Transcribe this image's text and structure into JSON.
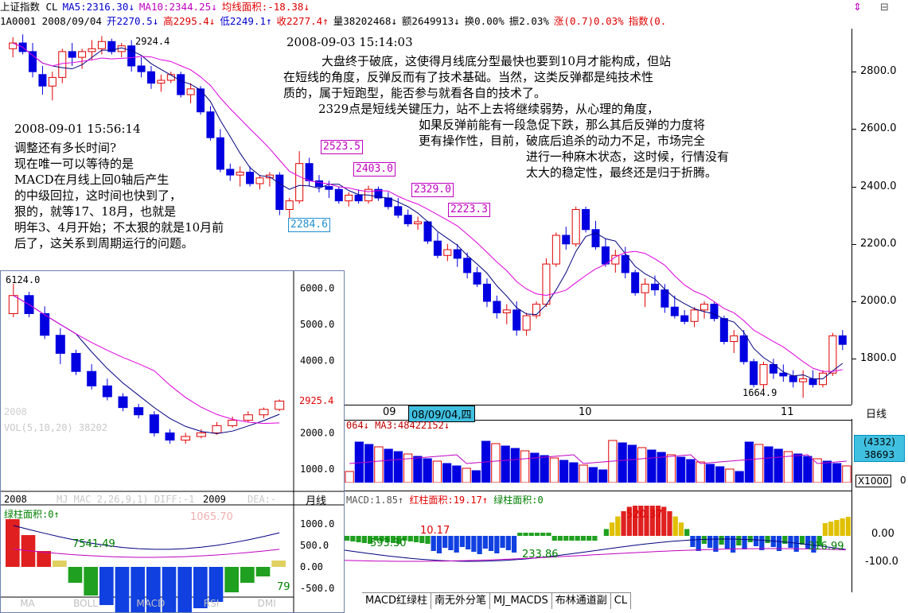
{
  "header": {
    "row1": [
      {
        "t": "上证指数 CL",
        "c": "blk"
      },
      {
        "t": "MA5:2316.30↓",
        "c": "blue"
      },
      {
        "t": "MA10:2344.25↓",
        "c": "mag"
      },
      {
        "t": "均线面积:-18.38↓",
        "c": "red"
      }
    ],
    "row2": [
      {
        "t": "1A0001 2008/09/04",
        "c": "blk"
      },
      {
        "t": "开2270.5↓",
        "c": "blue"
      },
      {
        "t": "高2295.4↓",
        "c": "red"
      },
      {
        "t": "低2249.1↑",
        "c": "blue"
      },
      {
        "t": "收2277.4↑",
        "c": "red"
      },
      {
        "t": "量38202468↓",
        "c": "blk"
      },
      {
        "t": "额2649913↓",
        "c": "blk"
      },
      {
        "t": "换0.00%",
        "c": "blk"
      },
      {
        "t": "振2.03%",
        "c": "blk"
      },
      {
        "t": "涨(0.7)0.03%",
        "c": "red"
      },
      {
        "t": "指数(0.",
        "c": "red"
      }
    ]
  },
  "colors": {
    "up": "#e00000",
    "down": "#0000e0",
    "ma5": "#000080",
    "ma10": "#e000e0",
    "inset_border": "#6b7fae"
  },
  "notes": {
    "n1_date": "2008-09-01 15:56:14",
    "n1_lines": [
      "调整还有多长时间?",
      "现在唯一可以等待的是",
      "MACD在月线上回0轴后产生",
      "的中级回拉，这时间也快到了，",
      "狠的，就等17、18月，也就是",
      "明年3、4月开始；不太狠的就是10月前",
      "后了，这关系到周期运行的问题。"
    ],
    "n2_date": "2008-09-03 15:14:03",
    "n2_lines": [
      "大盘终于破底，这使得月线底分型最快也要到10月才能构成，但站",
      "在短线的角度，反弹反而有了技术基础。当然，这类反弹都是纯技术性",
      "质的，属于短跑型，能否参与就看各自的技术了。",
      "2329点是短线关键压力，站不上去将继续弱势，从心理的角度，",
      "如果反弹前能有一段急促下跌，那么其后反弹的力度将",
      "更有操作性，目前，破底后追杀的动力不足，市场完全",
      "进行一种麻木状态，这时候，行情没有",
      "太大的稳定性，最终还是归于折腾。"
    ]
  },
  "price_labels": {
    "p2924": "2924.4",
    "p2523": "2523.5",
    "p2403": "2403.0",
    "p2329": "2329.0",
    "p2284": "2284.6",
    "p2223": "2223.3",
    "p1664": "1664.9"
  },
  "main_axis": {
    "ticks": [
      "2800.0",
      "2600.0",
      "2400.0",
      "2200.0",
      "2000.0",
      "1800.0"
    ]
  },
  "date_axis": {
    "m09": "09",
    "selected": "08/09/04,四",
    "m10": "10",
    "m11": "11",
    "period": "日线"
  },
  "volume": {
    "title": "064↓ MA3:48422152↓",
    "box1": "(4332)",
    "box2": "38693",
    "ticks_right": "0",
    "unit": "X1000"
  },
  "macd": {
    "title_blk": "MACD:1.85↑",
    "title_red": "红柱面积:19.17↑",
    "title_grn": "绿柱面积:0",
    "v520": "520.37",
    "v593": "593.30",
    "v233": "233.86",
    "v316": "316.99",
    "v10": "10.17",
    "ticks": [
      "0.00",
      "-100.0"
    ]
  },
  "inset": {
    "p6124": "6124.0",
    "p2925": "2925.4",
    "yticks": [
      "6000.0",
      "5000.0",
      "4000.0",
      "3000.0",
      "2000.0",
      "1000.0"
    ],
    "x2008": "2008",
    "x2009": "2009",
    "period": "月线",
    "green_area": "绿柱面积:0↑",
    "v7541": "7541.49",
    "v1065": "1065.70",
    "v79": "79",
    "macd_ticks": [
      "1000.0",
      "500.0",
      "0.00",
      "-500.0"
    ],
    "faded_vol": "VOL(5,10,20) 38202",
    "faded_macd": "MJ MAC 2,26,9,1) DIFF:-1",
    "faded_dea": "DEA:-",
    "faded_y2008": "2008",
    "tabs": [
      "MA",
      "BOLL",
      "MACD",
      "RSI",
      "DMI"
    ]
  },
  "tabs": [
    "MACD红绿柱",
    "南无外分笔",
    "MJ_MACDS",
    "布林通道副",
    "CL"
  ],
  "chart_data": [
    {
      "type": "candlestick",
      "title": "上证指数 日线",
      "note": "daily OHLC, approx. Jul 2008 – Nov 2008",
      "ohlc": [
        [
          2880,
          2920,
          2850,
          2900
        ],
        [
          2900,
          2930,
          2860,
          2870
        ],
        [
          2870,
          2900,
          2780,
          2800
        ],
        [
          2790,
          2820,
          2720,
          2750
        ],
        [
          2750,
          2800,
          2700,
          2780
        ],
        [
          2780,
          2880,
          2760,
          2870
        ],
        [
          2870,
          2900,
          2820,
          2850
        ],
        [
          2850,
          2880,
          2810,
          2870
        ],
        [
          2870,
          2910,
          2840,
          2880
        ],
        [
          2880,
          2924,
          2860,
          2905
        ],
        [
          2905,
          2915,
          2860,
          2870
        ],
        [
          2870,
          2900,
          2850,
          2890
        ],
        [
          2890,
          2910,
          2800,
          2820
        ],
        [
          2820,
          2850,
          2780,
          2800
        ],
        [
          2800,
          2820,
          2740,
          2760
        ],
        [
          2760,
          2790,
          2730,
          2770
        ],
        [
          2770,
          2800,
          2760,
          2790
        ],
        [
          2790,
          2800,
          2710,
          2720
        ],
        [
          2720,
          2760,
          2690,
          2740
        ],
        [
          2740,
          2750,
          2650,
          2660
        ],
        [
          2660,
          2680,
          2560,
          2570
        ],
        [
          2570,
          2600,
          2450,
          2460
        ],
        [
          2460,
          2480,
          2420,
          2440
        ],
        [
          2440,
          2470,
          2400,
          2450
        ],
        [
          2450,
          2470,
          2400,
          2410
        ],
        [
          2410,
          2440,
          2390,
          2430
        ],
        [
          2430,
          2450,
          2400,
          2440
        ],
        [
          2440,
          2450,
          2300,
          2320
        ],
        [
          2320,
          2360,
          2290,
          2350
        ],
        [
          2350,
          2523,
          2340,
          2480
        ],
        [
          2480,
          2500,
          2400,
          2420
        ],
        [
          2420,
          2440,
          2380,
          2400
        ],
        [
          2400,
          2420,
          2360,
          2390
        ],
        [
          2390,
          2400,
          2340,
          2350
        ],
        [
          2350,
          2380,
          2330,
          2370
        ],
        [
          2370,
          2390,
          2340,
          2350
        ],
        [
          2350,
          2403,
          2340,
          2390
        ],
        [
          2390,
          2400,
          2350,
          2360
        ],
        [
          2360,
          2380,
          2320,
          2330
        ],
        [
          2330,
          2360,
          2290,
          2300
        ],
        [
          2300,
          2320,
          2260,
          2270
        ],
        [
          2270,
          2295,
          2249,
          2277
        ],
        [
          2277,
          2280,
          2200,
          2210
        ],
        [
          2210,
          2240,
          2150,
          2160
        ],
        [
          2160,
          2200,
          2140,
          2180
        ],
        [
          2180,
          2200,
          2120,
          2150
        ],
        [
          2150,
          2170,
          2080,
          2100
        ],
        [
          2100,
          2120,
          2050,
          2060
        ],
        [
          2060,
          2080,
          1980,
          2000
        ],
        [
          2000,
          2020,
          1940,
          1960
        ],
        [
          1960,
          1990,
          1920,
          1970
        ],
        [
          1970,
          2000,
          1880,
          1900
        ],
        [
          1900,
          1960,
          1880,
          1950
        ],
        [
          1950,
          2000,
          1940,
          1990
        ],
        [
          1990,
          2150,
          1980,
          2130
        ],
        [
          2130,
          2240,
          2120,
          2230
        ],
        [
          2230,
          2260,
          2180,
          2200
        ],
        [
          2200,
          2330,
          2190,
          2320
        ],
        [
          2320,
          2330,
          2240,
          2250
        ],
        [
          2250,
          2280,
          2180,
          2190
        ],
        [
          2190,
          2220,
          2120,
          2130
        ],
        [
          2130,
          2180,
          2100,
          2160
        ],
        [
          2160,
          2190,
          2080,
          2100
        ],
        [
          2100,
          2110,
          2020,
          2030
        ],
        [
          2030,
          2080,
          1980,
          2060
        ],
        [
          2060,
          2090,
          2020,
          2040
        ],
        [
          2040,
          2060,
          1960,
          1980
        ],
        [
          1980,
          2020,
          1940,
          1950
        ],
        [
          1950,
          1970,
          1920,
          1930
        ],
        [
          1930,
          1980,
          1910,
          1970
        ],
        [
          1970,
          2000,
          1940,
          1990
        ],
        [
          1990,
          2000,
          1930,
          1940
        ],
        [
          1940,
          1950,
          1850,
          1860
        ],
        [
          1860,
          1900,
          1820,
          1880
        ],
        [
          1880,
          1900,
          1780,
          1790
        ],
        [
          1790,
          1800,
          1700,
          1710
        ],
        [
          1710,
          1790,
          1690,
          1780
        ],
        [
          1780,
          1800,
          1730,
          1750
        ],
        [
          1750,
          1780,
          1720,
          1740
        ],
        [
          1740,
          1760,
          1700,
          1720
        ],
        [
          1720,
          1760,
          1664,
          1730
        ],
        [
          1730,
          1760,
          1700,
          1710
        ],
        [
          1710,
          1760,
          1700,
          1750
        ],
        [
          1750,
          1890,
          1740,
          1880
        ],
        [
          1880,
          1900,
          1830,
          1850
        ]
      ],
      "ylim": [
        1640,
        2950
      ]
    },
    {
      "type": "candlestick",
      "title": "上证指数 月线",
      "ohlc": [
        [
          5300,
          6124,
          5200,
          5800
        ],
        [
          5800,
          5900,
          5200,
          5300
        ],
        [
          5300,
          5500,
          4600,
          4700
        ],
        [
          4700,
          4900,
          3900,
          4200
        ],
        [
          4200,
          4300,
          3600,
          3700
        ],
        [
          3700,
          3900,
          3200,
          3300
        ],
        [
          3300,
          3500,
          2900,
          3000
        ],
        [
          3000,
          3100,
          2600,
          2700
        ],
        [
          2700,
          2800,
          2400,
          2500
        ],
        [
          2500,
          2600,
          1900,
          2000
        ],
        [
          2000,
          2100,
          1700,
          1800
        ],
        [
          1800,
          2000,
          1700,
          1900
        ],
        [
          1900,
          2100,
          1850,
          2000
        ],
        [
          2000,
          2300,
          1950,
          2200
        ],
        [
          2200,
          2450,
          2150,
          2350
        ],
        [
          2350,
          2600,
          2300,
          2500
        ],
        [
          2500,
          2700,
          2400,
          2650
        ],
        [
          2650,
          2925,
          2600,
          2880
        ]
      ],
      "ylim": [
        800,
        6300
      ]
    }
  ]
}
